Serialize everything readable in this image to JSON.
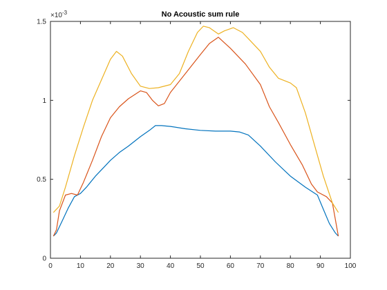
{
  "chart_data": {
    "type": "line",
    "title": "No Acoustic sum rule",
    "xlabel": "",
    "ylabel": "",
    "xlim": [
      0,
      100
    ],
    "ylim": [
      0,
      1.5
    ],
    "y_exponent_label": "×10^{-3}",
    "xticks": [
      "0",
      "10",
      "20",
      "30",
      "40",
      "50",
      "60",
      "70",
      "80",
      "90",
      "100"
    ],
    "yticks": [
      "0",
      "0.5",
      "1",
      "1.5"
    ],
    "grid": false,
    "series": [
      {
        "color": "#0072BD",
        "x": [
          1,
          2,
          4,
          6,
          8,
          10,
          12,
          15,
          18,
          20,
          23,
          26,
          30,
          33,
          35,
          37,
          40,
          45,
          50,
          55,
          60,
          63,
          66,
          70,
          75,
          80,
          85,
          89,
          91,
          93,
          95,
          96
        ],
        "y": [
          0.14,
          0.16,
          0.24,
          0.32,
          0.39,
          0.41,
          0.45,
          0.52,
          0.58,
          0.62,
          0.67,
          0.71,
          0.77,
          0.81,
          0.84,
          0.84,
          0.835,
          0.82,
          0.81,
          0.805,
          0.805,
          0.8,
          0.78,
          0.71,
          0.61,
          0.52,
          0.45,
          0.4,
          0.31,
          0.22,
          0.16,
          0.14
        ]
      },
      {
        "color": "#D95319",
        "x": [
          1,
          2,
          3,
          5,
          7,
          9,
          11,
          14,
          17,
          20,
          23,
          26,
          30,
          32,
          34,
          36,
          38,
          40,
          45,
          50,
          53,
          56,
          60,
          65,
          70,
          73,
          76,
          80,
          84,
          87,
          89,
          92,
          94,
          96
        ],
        "y": [
          0.14,
          0.18,
          0.3,
          0.4,
          0.41,
          0.4,
          0.48,
          0.62,
          0.77,
          0.89,
          0.96,
          1.01,
          1.06,
          1.05,
          1.0,
          0.965,
          0.98,
          1.05,
          1.17,
          1.29,
          1.36,
          1.4,
          1.33,
          1.23,
          1.1,
          0.96,
          0.86,
          0.72,
          0.59,
          0.47,
          0.42,
          0.39,
          0.35,
          0.14
        ]
      },
      {
        "color": "#EDB120",
        "x": [
          1,
          3,
          5,
          8,
          11,
          14,
          17,
          20,
          22,
          24,
          27,
          30,
          33,
          36,
          40,
          43,
          46,
          49,
          51,
          53,
          56,
          58,
          61,
          64,
          67,
          70,
          73,
          76,
          80,
          82,
          85,
          88,
          91,
          94,
          96
        ],
        "y": [
          0.29,
          0.33,
          0.45,
          0.65,
          0.83,
          1.0,
          1.13,
          1.26,
          1.31,
          1.28,
          1.17,
          1.09,
          1.075,
          1.08,
          1.1,
          1.17,
          1.31,
          1.43,
          1.47,
          1.46,
          1.42,
          1.44,
          1.46,
          1.43,
          1.37,
          1.31,
          1.21,
          1.14,
          1.11,
          1.08,
          0.92,
          0.72,
          0.52,
          0.35,
          0.29
        ]
      }
    ]
  }
}
